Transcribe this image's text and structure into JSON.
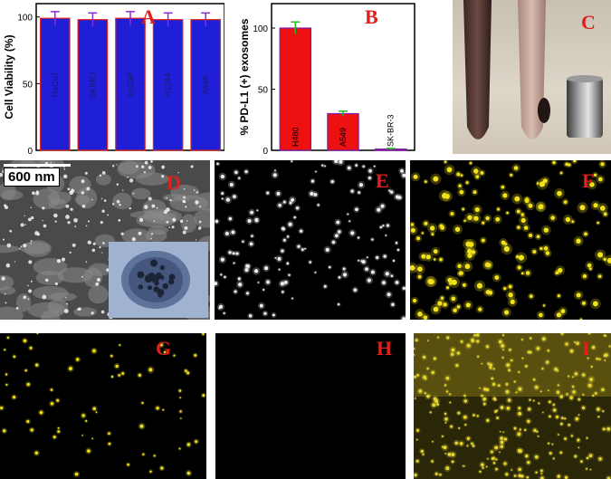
{
  "panels": {
    "A": "A",
    "B": "B",
    "C": "C",
    "D": "D",
    "E": "E",
    "F": "F",
    "G": "G",
    "H": "H",
    "I": "I"
  },
  "scale_bar": "600 nm",
  "colors": {
    "bar": "#1f1fd8",
    "bar_edge": "#e0201c",
    "bar_red": "#ee1111",
    "err_a": "#8b2bd6",
    "err_b": "#22bb22",
    "label": "#e0201c",
    "yellow": "#f2e21a"
  },
  "chart_data": [
    {
      "type": "bar",
      "panel": "A",
      "ylabel": "Cell Viability (%)",
      "ylim": [
        0,
        110
      ],
      "yticks": [
        "0",
        "50",
        "100"
      ],
      "categories": [
        "HaCaT",
        "SKBR3",
        "LnCaP",
        "H1264",
        "A549"
      ],
      "values": [
        99,
        98,
        99,
        98,
        98
      ],
      "errors": [
        5,
        5,
        5,
        5,
        5
      ]
    },
    {
      "type": "bar",
      "panel": "B",
      "ylabel": "% PD-L1 (+) exosomes",
      "ylim": [
        0,
        120
      ],
      "yticks": [
        "0",
        "50",
        "100"
      ],
      "categories": [
        "H480",
        "A549",
        "SK-BR-3"
      ],
      "values": [
        100,
        30,
        1
      ],
      "errors": [
        5,
        2,
        0.5
      ]
    }
  ]
}
